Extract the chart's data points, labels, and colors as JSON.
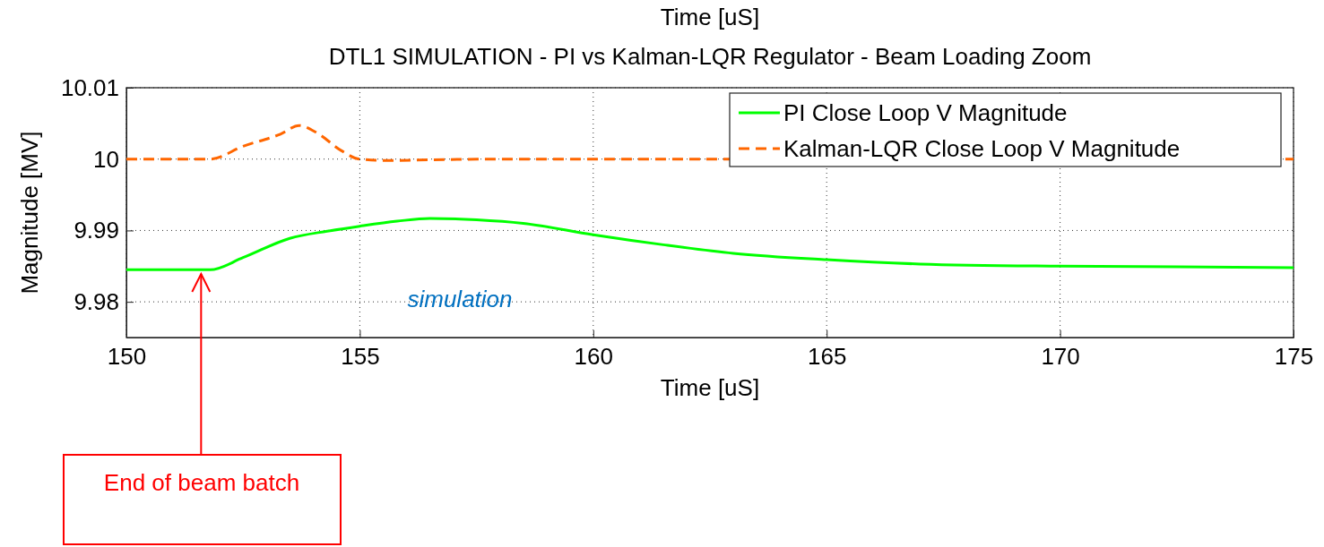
{
  "chart_data": {
    "type": "line",
    "title": "Time [uS]",
    "subtitle": "DTL1 SIMULATION  -  PI vs Kalman-LQR Regulator - Beam Loading Zoom",
    "xlabel": "Time [uS]",
    "ylabel": "Magnitude [MV]",
    "xlim": [
      150,
      175
    ],
    "xticks": [
      150,
      155,
      160,
      165,
      170,
      175
    ],
    "ylim": [
      9.975,
      10.01
    ],
    "yticks": [
      9.98,
      9.99,
      10,
      10.01
    ],
    "grid": true,
    "legend": "top right",
    "series": [
      {
        "name": "PI Close Loop V Magnitude",
        "color": "#00ff00",
        "line_style": "solid",
        "x": [
          150,
          151.8,
          152.5,
          153.5,
          154.3,
          155,
          155.8,
          156.5,
          157.5,
          158.5,
          160,
          161.5,
          163,
          165,
          167,
          170,
          172.5,
          175
        ],
        "values": [
          9.9845,
          9.9845,
          9.9862,
          9.9889,
          9.9899,
          9.9906,
          9.9913,
          9.9917,
          9.9915,
          9.991,
          9.9894,
          9.988,
          9.9868,
          9.9859,
          9.9853,
          9.985,
          9.9849,
          9.9848
        ]
      },
      {
        "name": "Kalman-LQR Close Loop V Magnitude",
        "color": "#ff6600",
        "line_style": "dashed",
        "x": [
          150,
          151.8,
          152.5,
          153.3,
          153.7,
          154.1,
          154.6,
          155,
          155.7,
          156.5,
          158,
          175
        ],
        "values": [
          10,
          10,
          10.0018,
          10.0035,
          10.0047,
          10.0036,
          10.0012,
          10,
          9.9998,
          9.9999,
          10,
          10
        ]
      }
    ],
    "annotations": [
      {
        "text": "End of beam batch",
        "x": 151.6,
        "y": 9.9844
      },
      "simulation"
    ]
  }
}
